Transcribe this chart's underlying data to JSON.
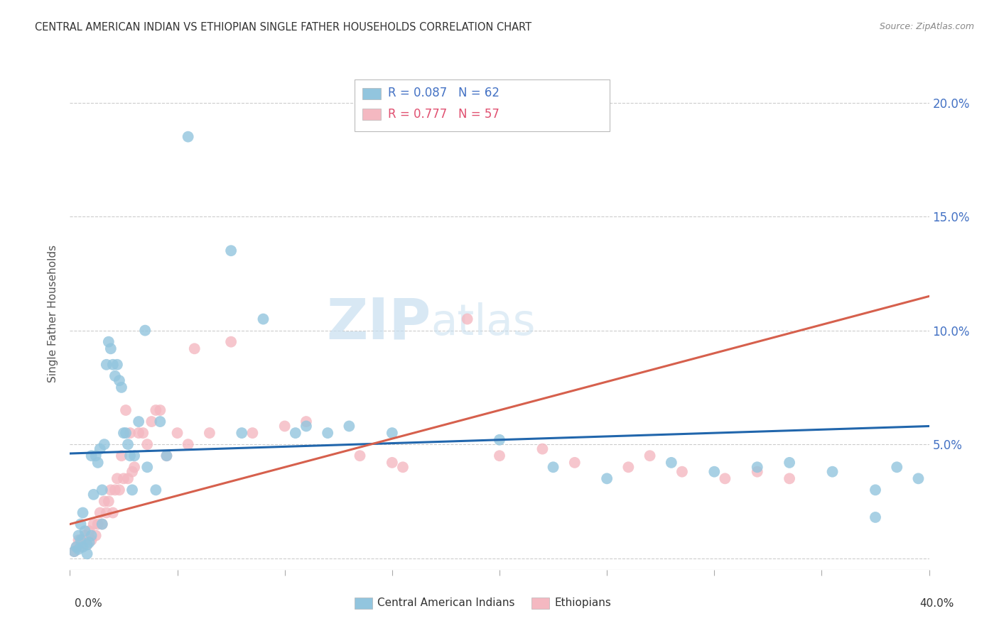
{
  "title": "CENTRAL AMERICAN INDIAN VS ETHIOPIAN SINGLE FATHER HOUSEHOLDS CORRELATION CHART",
  "source": "Source: ZipAtlas.com",
  "ylabel": "Single Father Households",
  "xlim": [
    0.0,
    40.0
  ],
  "ylim": [
    -0.5,
    22.0
  ],
  "yticks": [
    0.0,
    5.0,
    10.0,
    15.0,
    20.0
  ],
  "ytick_labels": [
    "",
    "5.0%",
    "10.0%",
    "15.0%",
    "20.0%"
  ],
  "xticks": [
    0,
    5,
    10,
    15,
    20,
    25,
    30,
    35,
    40
  ],
  "blue_color": "#92c5de",
  "pink_color": "#f4b8c1",
  "blue_line_color": "#2166ac",
  "pink_line_color": "#d6604d",
  "blue_scatter": [
    [
      0.2,
      0.3
    ],
    [
      0.3,
      0.5
    ],
    [
      0.4,
      0.4
    ],
    [
      0.5,
      0.8
    ],
    [
      0.5,
      1.5
    ],
    [
      0.6,
      0.5
    ],
    [
      0.7,
      1.2
    ],
    [
      0.8,
      0.6
    ],
    [
      0.9,
      0.7
    ],
    [
      1.0,
      1.0
    ],
    [
      1.0,
      4.5
    ],
    [
      1.1,
      2.8
    ],
    [
      1.2,
      4.5
    ],
    [
      1.3,
      4.2
    ],
    [
      1.4,
      4.8
    ],
    [
      1.5,
      3.0
    ],
    [
      1.6,
      5.0
    ],
    [
      1.7,
      8.5
    ],
    [
      1.8,
      9.5
    ],
    [
      1.9,
      9.2
    ],
    [
      2.0,
      8.5
    ],
    [
      2.1,
      8.0
    ],
    [
      2.2,
      8.5
    ],
    [
      2.3,
      7.8
    ],
    [
      2.4,
      7.5
    ],
    [
      2.5,
      5.5
    ],
    [
      2.6,
      5.5
    ],
    [
      2.7,
      5.0
    ],
    [
      2.8,
      4.5
    ],
    [
      2.9,
      3.0
    ],
    [
      3.0,
      4.5
    ],
    [
      3.2,
      6.0
    ],
    [
      3.5,
      10.0
    ],
    [
      3.6,
      4.0
    ],
    [
      4.0,
      3.0
    ],
    [
      4.2,
      6.0
    ],
    [
      4.5,
      4.5
    ],
    [
      5.5,
      18.5
    ],
    [
      7.5,
      13.5
    ],
    [
      8.0,
      5.5
    ],
    [
      9.0,
      10.5
    ],
    [
      10.5,
      5.5
    ],
    [
      11.0,
      5.8
    ],
    [
      12.0,
      5.5
    ],
    [
      13.0,
      5.8
    ],
    [
      15.0,
      5.5
    ],
    [
      20.0,
      5.2
    ],
    [
      22.5,
      4.0
    ],
    [
      25.0,
      3.5
    ],
    [
      28.0,
      4.2
    ],
    [
      30.0,
      3.8
    ],
    [
      32.0,
      4.0
    ],
    [
      33.5,
      4.2
    ],
    [
      35.5,
      3.8
    ],
    [
      37.5,
      3.0
    ],
    [
      37.5,
      1.8
    ],
    [
      38.5,
      4.0
    ],
    [
      39.5,
      3.5
    ],
    [
      0.6,
      2.0
    ],
    [
      0.4,
      1.0
    ],
    [
      1.5,
      1.5
    ],
    [
      0.8,
      0.2
    ]
  ],
  "pink_scatter": [
    [
      0.2,
      0.3
    ],
    [
      0.3,
      0.5
    ],
    [
      0.4,
      0.8
    ],
    [
      0.5,
      0.5
    ],
    [
      0.6,
      0.8
    ],
    [
      0.7,
      1.0
    ],
    [
      0.8,
      0.6
    ],
    [
      0.9,
      1.2
    ],
    [
      1.0,
      0.8
    ],
    [
      1.1,
      1.5
    ],
    [
      1.2,
      1.0
    ],
    [
      1.3,
      1.5
    ],
    [
      1.4,
      2.0
    ],
    [
      1.5,
      1.5
    ],
    [
      1.6,
      2.5
    ],
    [
      1.7,
      2.0
    ],
    [
      1.8,
      2.5
    ],
    [
      1.9,
      3.0
    ],
    [
      2.0,
      2.0
    ],
    [
      2.1,
      3.0
    ],
    [
      2.2,
      3.5
    ],
    [
      2.3,
      3.0
    ],
    [
      2.4,
      4.5
    ],
    [
      2.5,
      3.5
    ],
    [
      2.6,
      6.5
    ],
    [
      2.7,
      3.5
    ],
    [
      2.8,
      5.5
    ],
    [
      2.9,
      3.8
    ],
    [
      3.0,
      4.0
    ],
    [
      3.2,
      5.5
    ],
    [
      3.4,
      5.5
    ],
    [
      3.6,
      5.0
    ],
    [
      3.8,
      6.0
    ],
    [
      4.0,
      6.5
    ],
    [
      4.2,
      6.5
    ],
    [
      4.5,
      4.5
    ],
    [
      5.0,
      5.5
    ],
    [
      5.5,
      5.0
    ],
    [
      5.8,
      9.2
    ],
    [
      6.5,
      5.5
    ],
    [
      7.5,
      9.5
    ],
    [
      8.5,
      5.5
    ],
    [
      10.0,
      5.8
    ],
    [
      11.0,
      6.0
    ],
    [
      13.5,
      4.5
    ],
    [
      15.0,
      4.2
    ],
    [
      15.5,
      4.0
    ],
    [
      18.5,
      10.5
    ],
    [
      20.0,
      4.5
    ],
    [
      22.0,
      4.8
    ],
    [
      23.5,
      4.2
    ],
    [
      26.0,
      4.0
    ],
    [
      27.0,
      4.5
    ],
    [
      28.5,
      3.8
    ],
    [
      30.5,
      3.5
    ],
    [
      32.0,
      3.8
    ],
    [
      33.5,
      3.5
    ]
  ],
  "blue_line_x": [
    0.0,
    40.0
  ],
  "blue_line_y": [
    4.6,
    5.8
  ],
  "pink_line_x": [
    0.0,
    40.0
  ],
  "pink_line_y": [
    1.5,
    11.5
  ],
  "watermark_zip": "ZIP",
  "watermark_atlas": "atlas",
  "background_color": "#ffffff",
  "grid_color": "#cccccc",
  "tick_color": "#4472c4",
  "legend_blue_text": "R = 0.087   N = 62",
  "legend_pink_text": "R = 0.777   N = 57",
  "bottom_legend_blue": "Central American Indians",
  "bottom_legend_pink": "Ethiopians"
}
